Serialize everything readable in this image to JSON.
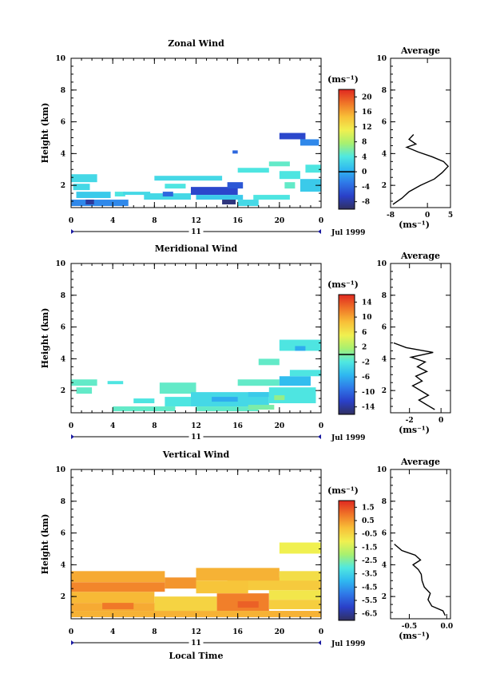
{
  "figure": {
    "date_label": "Jul 1999",
    "xlabel": "Local Time",
    "ylabel": "Height (km)",
    "unit_label": "(ms⁻¹)",
    "avg_title": "Average",
    "day_label": "11"
  },
  "chart_data": [
    {
      "type": "heatmap",
      "title": "Zonal Wind",
      "xlabel": "",
      "ylabel": "Height (km)",
      "x_ticks": [
        "0",
        "4",
        "8",
        "12",
        "16",
        "20",
        "0"
      ],
      "y_ticks": [
        "2",
        "4",
        "6",
        "8",
        "10"
      ],
      "xlim": [
        0,
        24
      ],
      "ylim": [
        0.6,
        10
      ],
      "colorbar": {
        "ticks": [
          "-8",
          "-4",
          "0",
          "4",
          "8",
          "12",
          "16",
          "20"
        ],
        "range": [
          -10,
          22
        ],
        "zero_line": 0
      },
      "cells": [
        {
          "x": [
            0,
            2.5
          ],
          "y": [
            2.2,
            2.7
          ],
          "v": 3
        },
        {
          "x": [
            0.2,
            1.8
          ],
          "y": [
            1.7,
            2.1
          ],
          "v": 3
        },
        {
          "x": [
            0.5,
            3.8
          ],
          "y": [
            1.2,
            1.6
          ],
          "v": 2
        },
        {
          "x": [
            0,
            5.5
          ],
          "y": [
            0.7,
            1.1
          ],
          "v": -2
        },
        {
          "x": [
            1.4,
            2.2
          ],
          "y": [
            0.8,
            1.1
          ],
          "v": -8
        },
        {
          "x": [
            4.2,
            5.2
          ],
          "y": [
            1.3,
            1.6
          ],
          "v": 4
        },
        {
          "x": [
            5,
            7.6
          ],
          "y": [
            1.4,
            1.6
          ],
          "v": 3
        },
        {
          "x": [
            7,
            11.5
          ],
          "y": [
            1.1,
            1.5
          ],
          "v": 3
        },
        {
          "x": [
            8.8,
            9.8
          ],
          "y": [
            1.3,
            1.6
          ],
          "v": -4
        },
        {
          "x": [
            8,
            14.5
          ],
          "y": [
            2.3,
            2.6
          ],
          "v": 3
        },
        {
          "x": [
            9,
            11
          ],
          "y": [
            1.8,
            2.1
          ],
          "v": 4
        },
        {
          "x": [
            11.5,
            16
          ],
          "y": [
            1.4,
            1.9
          ],
          "v": -6
        },
        {
          "x": [
            14.5,
            15.8
          ],
          "y": [
            0.8,
            1.2
          ],
          "v": -9
        },
        {
          "x": [
            12,
            16.5
          ],
          "y": [
            1.1,
            1.4
          ],
          "v": 2
        },
        {
          "x": [
            15,
            16.5
          ],
          "y": [
            1.8,
            2.2
          ],
          "v": -5
        },
        {
          "x": [
            16,
            18
          ],
          "y": [
            0.7,
            1.1
          ],
          "v": 3
        },
        {
          "x": [
            17.5,
            21
          ],
          "y": [
            1.1,
            1.4
          ],
          "v": 4
        },
        {
          "x": [
            16,
            19
          ],
          "y": [
            2.8,
            3.1
          ],
          "v": 4
        },
        {
          "x": [
            19,
            21
          ],
          "y": [
            3.2,
            3.5
          ],
          "v": 5
        },
        {
          "x": [
            20,
            22
          ],
          "y": [
            2.4,
            2.9
          ],
          "v": 4
        },
        {
          "x": [
            20.5,
            21.5
          ],
          "y": [
            1.8,
            2.2
          ],
          "v": 5
        },
        {
          "x": [
            22,
            24
          ],
          "y": [
            1.6,
            2.4
          ],
          "v": 2
        },
        {
          "x": [
            22.5,
            24
          ],
          "y": [
            2.8,
            3.3
          ],
          "v": 4
        },
        {
          "x": [
            20,
            22.5
          ],
          "y": [
            4.9,
            5.3
          ],
          "v": -6
        },
        {
          "x": [
            22,
            23.8
          ],
          "y": [
            4.5,
            4.9
          ],
          "v": -2
        },
        {
          "x": [
            15.5,
            16
          ],
          "y": [
            4.0,
            4.2
          ],
          "v": -4
        }
      ],
      "average": {
        "xlim": [
          -8,
          5
        ],
        "x_ticks": [
          "-8",
          "0",
          "5"
        ],
        "y_ticks": [
          "2",
          "4",
          "6",
          "8",
          "10"
        ],
        "profile": [
          {
            "h": 0.8,
            "v": -7.5
          },
          {
            "h": 1.2,
            "v": -5.5
          },
          {
            "h": 1.6,
            "v": -4
          },
          {
            "h": 2.0,
            "v": -1.5
          },
          {
            "h": 2.4,
            "v": 1.5
          },
          {
            "h": 2.8,
            "v": 3.2
          },
          {
            "h": 3.2,
            "v": 4.5
          },
          {
            "h": 3.5,
            "v": 3.5
          },
          {
            "h": 3.8,
            "v": 1
          },
          {
            "h": 4.1,
            "v": -2
          },
          {
            "h": 4.4,
            "v": -4.5
          },
          {
            "h": 4.6,
            "v": -2.5
          },
          {
            "h": 4.9,
            "v": -4
          },
          {
            "h": 5.2,
            "v": -3
          }
        ]
      }
    },
    {
      "type": "heatmap",
      "title": "Meridional Wind",
      "xlabel": "",
      "ylabel": "Height (km)",
      "x_ticks": [
        "0",
        "4",
        "8",
        "12",
        "16",
        "20",
        "0"
      ],
      "y_ticks": [
        "2",
        "4",
        "6",
        "8",
        "10"
      ],
      "xlim": [
        0,
        24
      ],
      "ylim": [
        0.6,
        10
      ],
      "colorbar": {
        "ticks": [
          "-14",
          "-10",
          "-6",
          "-2",
          "2",
          "6",
          "10",
          "14"
        ],
        "range": [
          -16,
          16
        ],
        "zero_line": 0
      },
      "cells": [
        {
          "x": [
            0,
            2.5
          ],
          "y": [
            2.3,
            2.7
          ],
          "v": -1
        },
        {
          "x": [
            0.5,
            2
          ],
          "y": [
            1.8,
            2.2
          ],
          "v": -1
        },
        {
          "x": [
            3.5,
            5
          ],
          "y": [
            2.4,
            2.6
          ],
          "v": -2
        },
        {
          "x": [
            4,
            10
          ],
          "y": [
            0.7,
            1.0
          ],
          "v": -1
        },
        {
          "x": [
            6,
            8
          ],
          "y": [
            1.2,
            1.5
          ],
          "v": -2
        },
        {
          "x": [
            8.5,
            12
          ],
          "y": [
            1.8,
            2.5
          ],
          "v": -1
        },
        {
          "x": [
            9,
            11.5
          ],
          "y": [
            1.0,
            1.6
          ],
          "v": -2
        },
        {
          "x": [
            11.5,
            19
          ],
          "y": [
            1.0,
            1.9
          ],
          "v": -3
        },
        {
          "x": [
            13.5,
            16
          ],
          "y": [
            1.3,
            1.6
          ],
          "v": -6
        },
        {
          "x": [
            17,
            19
          ],
          "y": [
            1.6,
            1.9
          ],
          "v": -4
        },
        {
          "x": [
            12,
            18
          ],
          "y": [
            0.7,
            1.0
          ],
          "v": -1
        },
        {
          "x": [
            16,
            20
          ],
          "y": [
            2.3,
            2.7
          ],
          "v": -1
        },
        {
          "x": [
            19,
            23.5
          ],
          "y": [
            1.2,
            2.2
          ],
          "v": -2
        },
        {
          "x": [
            20,
            23
          ],
          "y": [
            2.3,
            2.9
          ],
          "v": -5
        },
        {
          "x": [
            21,
            24
          ],
          "y": [
            2.9,
            3.3
          ],
          "v": -2
        },
        {
          "x": [
            17,
            19.5
          ],
          "y": [
            0.8,
            1.1
          ],
          "v": 0
        },
        {
          "x": [
            19.5,
            20.5
          ],
          "y": [
            1.4,
            1.7
          ],
          "v": 1
        },
        {
          "x": [
            20,
            24
          ],
          "y": [
            4.5,
            5.2
          ],
          "v": -2
        },
        {
          "x": [
            21.5,
            22.5
          ],
          "y": [
            4.5,
            4.8
          ],
          "v": -6
        },
        {
          "x": [
            18,
            20
          ],
          "y": [
            3.6,
            4.0
          ],
          "v": -1
        }
      ],
      "average": {
        "xlim": [
          -3.2,
          0.6
        ],
        "x_ticks": [
          "-2",
          "0"
        ],
        "y_ticks": [
          "2",
          "4",
          "6",
          "8",
          "10"
        ],
        "profile": [
          {
            "h": 0.8,
            "v": -0.4
          },
          {
            "h": 1.1,
            "v": -0.9
          },
          {
            "h": 1.4,
            "v": -1.4
          },
          {
            "h": 1.7,
            "v": -0.8
          },
          {
            "h": 2.0,
            "v": -1.3
          },
          {
            "h": 2.3,
            "v": -1.8
          },
          {
            "h": 2.6,
            "v": -1.2
          },
          {
            "h": 2.9,
            "v": -1.6
          },
          {
            "h": 3.2,
            "v": -0.9
          },
          {
            "h": 3.5,
            "v": -1.5
          },
          {
            "h": 3.8,
            "v": -1.0
          },
          {
            "h": 4.1,
            "v": -1.9
          },
          {
            "h": 4.4,
            "v": -0.5
          },
          {
            "h": 4.7,
            "v": -2.2
          },
          {
            "h": 5.0,
            "v": -3.0
          }
        ]
      }
    },
    {
      "type": "heatmap",
      "title": "Vertical Wind",
      "xlabel": "Local Time",
      "ylabel": "Height (km)",
      "x_ticks": [
        "0",
        "4",
        "8",
        "12",
        "16",
        "20",
        "0"
      ],
      "y_ticks": [
        "2",
        "4",
        "6",
        "8",
        "10"
      ],
      "xlim": [
        0,
        24
      ],
      "ylim": [
        0.6,
        10
      ],
      "colorbar": {
        "ticks": [
          "-6.5",
          "-5.5",
          "-4.5",
          "-3.5",
          "-2.5",
          "-1.5",
          "-0.5",
          "0.5",
          "1.5"
        ],
        "range": [
          -7,
          2
        ],
        "zero_line": null
      },
      "cells": [
        {
          "x": [
            0,
            24
          ],
          "y": [
            0.7,
            1.1
          ],
          "v": 0.2
        },
        {
          "x": [
            0,
            11
          ],
          "y": [
            1.1,
            1.6
          ],
          "v": 0.3
        },
        {
          "x": [
            0,
            8
          ],
          "y": [
            1.6,
            2.3
          ],
          "v": 0.1
        },
        {
          "x": [
            0,
            9
          ],
          "y": [
            2.3,
            2.9
          ],
          "v": 0.8
        },
        {
          "x": [
            0,
            9
          ],
          "y": [
            2.9,
            3.6
          ],
          "v": 0.3
        },
        {
          "x": [
            9,
            12
          ],
          "y": [
            2.5,
            3.2
          ],
          "v": 0.6
        },
        {
          "x": [
            8,
            14
          ],
          "y": [
            1.1,
            2.0
          ],
          "v": -0.4
        },
        {
          "x": [
            14,
            19
          ],
          "y": [
            1.1,
            2.2
          ],
          "v": 0.9
        },
        {
          "x": [
            19,
            24
          ],
          "y": [
            1.2,
            1.8
          ],
          "v": -0.3
        },
        {
          "x": [
            19,
            24
          ],
          "y": [
            1.8,
            2.4
          ],
          "v": -0.8
        },
        {
          "x": [
            15,
            24
          ],
          "y": [
            2.4,
            3.2
          ],
          "v": -0.2
        },
        {
          "x": [
            12,
            20
          ],
          "y": [
            3.0,
            3.8
          ],
          "v": 0.2
        },
        {
          "x": [
            20,
            24
          ],
          "y": [
            3.0,
            3.6
          ],
          "v": -0.6
        },
        {
          "x": [
            12,
            17
          ],
          "y": [
            2.2,
            3.0
          ],
          "v": -0.1
        },
        {
          "x": [
            20,
            24
          ],
          "y": [
            4.7,
            5.4
          ],
          "v": -1.0
        },
        {
          "x": [
            3,
            6
          ],
          "y": [
            1.2,
            1.6
          ],
          "v": 1.0
        },
        {
          "x": [
            16,
            18
          ],
          "y": [
            1.3,
            1.7
          ],
          "v": 1.3
        }
      ],
      "average": {
        "xlim": [
          -0.75,
          0.05
        ],
        "x_ticks": [
          "-0.5",
          "0.0"
        ],
        "y_ticks": [
          "2",
          "4",
          "6",
          "8",
          "10"
        ],
        "profile": [
          {
            "h": 0.8,
            "v": -0.02
          },
          {
            "h": 1.1,
            "v": -0.05
          },
          {
            "h": 1.4,
            "v": -0.2
          },
          {
            "h": 1.8,
            "v": -0.25
          },
          {
            "h": 2.2,
            "v": -0.22
          },
          {
            "h": 2.6,
            "v": -0.3
          },
          {
            "h": 3.0,
            "v": -0.33
          },
          {
            "h": 3.4,
            "v": -0.34
          },
          {
            "h": 3.7,
            "v": -0.38
          },
          {
            "h": 4.0,
            "v": -0.45
          },
          {
            "h": 4.3,
            "v": -0.35
          },
          {
            "h": 4.6,
            "v": -0.42
          },
          {
            "h": 4.9,
            "v": -0.6
          },
          {
            "h": 5.3,
            "v": -0.7
          }
        ]
      }
    }
  ],
  "colors": {
    "stops": [
      "#303060",
      "#2a40c8",
      "#2f78e8",
      "#2fb8f0",
      "#50e8e0",
      "#a8f070",
      "#f0f050",
      "#f8c038",
      "#f07828",
      "#e02820"
    ]
  }
}
